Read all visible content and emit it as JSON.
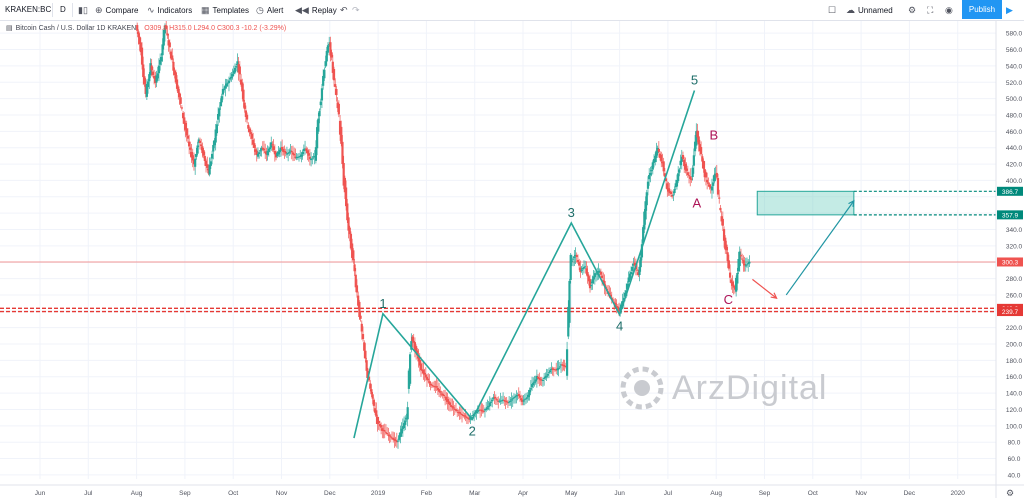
{
  "toolbar": {
    "symbol": "KRAKEN:BCI",
    "interval": "D",
    "compare": "Compare",
    "indicators": "Indicators",
    "templates": "Templates",
    "alert": "Alert",
    "replay": "Replay",
    "layout_name": "Unnamed",
    "publish": "Publish",
    "icons": [
      "candles-icon",
      "plus-circle-icon",
      "indicators-icon",
      "templates-icon",
      "alert-clock-icon",
      "replay-icon",
      "undo-icon",
      "redo-icon",
      "checkbox-icon",
      "cloud-icon",
      "gear-icon",
      "fullscreen-icon",
      "camera-icon",
      "play-icon"
    ]
  },
  "legend": {
    "title": "Bitcoin Cash / U.S. Dollar  1D  KRAKEN",
    "ohlc": "O309.8  H315.0  L294.0  C300.3  -10.2 (-3.29%)"
  },
  "watermark": "ArzDigital",
  "colors": {
    "up": "#26a69a",
    "down": "#ef5350",
    "accent": "#2196f3",
    "wave": "#26a69a",
    "current_price": "#ef5350",
    "support": "#e53935",
    "target_box": "#7dd3c6",
    "wave_label": "#1e6e69",
    "abc_label": "#ad1457"
  },
  "chart_data": {
    "type": "candlestick",
    "symbol": "BCH/USD",
    "timeframe": "1D",
    "y_axis": {
      "range": [
        40,
        600
      ],
      "ticks": [
        580,
        560,
        540,
        520,
        500,
        480,
        460,
        440,
        420,
        400,
        380,
        360,
        340,
        320,
        300,
        280,
        260,
        240,
        220,
        200,
        180,
        160,
        140,
        120,
        100,
        80,
        60,
        40
      ]
    },
    "x_axis": {
      "labels": [
        "Jun",
        "Jul",
        "Aug",
        "Sep",
        "Oct",
        "Nov",
        "Dec",
        "2019",
        "Feb",
        "Mar",
        "Apr",
        "May",
        "Jun",
        "Jul",
        "Aug",
        "Sep",
        "Oct",
        "Nov",
        "Dec",
        "2020"
      ]
    },
    "price_markers": [
      {
        "label": "386.7",
        "value": 386.7,
        "kind": "target"
      },
      {
        "label": "357.9",
        "value": 357.9,
        "kind": "target"
      },
      {
        "label": "300.3",
        "value": 300.3,
        "kind": "current"
      },
      {
        "label": "243.6",
        "value": 243.6,
        "kind": "support"
      },
      {
        "label": "239.7",
        "value": 239.7,
        "kind": "support"
      }
    ],
    "target_zone": {
      "low": 357.9,
      "high": 386.7
    },
    "support_zone": {
      "low": 239.7,
      "high": 243.6
    },
    "elliott_wave": [
      {
        "label": "",
        "x": 6.5,
        "y": 85
      },
      {
        "label": "1",
        "x": 7.1,
        "y": 237
      },
      {
        "label": "2",
        "x": 8.95,
        "y": 108
      },
      {
        "label": "3",
        "x": 11.0,
        "y": 348
      },
      {
        "label": "4",
        "x": 12.0,
        "y": 236
      },
      {
        "label": "5",
        "x": 13.55,
        "y": 510
      }
    ],
    "corrective_labels": [
      {
        "label": "A",
        "x": 13.6,
        "y": 367
      },
      {
        "label": "B",
        "x": 13.95,
        "y": 450
      },
      {
        "label": "C",
        "x": 14.25,
        "y": 249
      }
    ],
    "projection_down": {
      "from": [
        14.75,
        279
      ],
      "to": [
        15.25,
        256
      ]
    },
    "projection_up": {
      "from": [
        15.45,
        260
      ],
      "to": [
        16.85,
        375
      ]
    },
    "price_path": [
      [
        2.0,
        590
      ],
      [
        2.1,
        560
      ],
      [
        2.2,
        505
      ],
      [
        2.3,
        540
      ],
      [
        2.4,
        520
      ],
      [
        2.5,
        545
      ],
      [
        2.6,
        590
      ],
      [
        2.7,
        560
      ],
      [
        2.8,
        530
      ],
      [
        2.9,
        500
      ],
      [
        3.0,
        470
      ],
      [
        3.1,
        440
      ],
      [
        3.2,
        420
      ],
      [
        3.3,
        450
      ],
      [
        3.4,
        430
      ],
      [
        3.5,
        410
      ],
      [
        3.6,
        440
      ],
      [
        3.7,
        480
      ],
      [
        3.8,
        510
      ],
      [
        3.9,
        520
      ],
      [
        4.0,
        530
      ],
      [
        4.1,
        545
      ],
      [
        4.2,
        510
      ],
      [
        4.3,
        470
      ],
      [
        4.4,
        450
      ],
      [
        4.5,
        430
      ],
      [
        4.6,
        440
      ],
      [
        4.7,
        432
      ],
      [
        4.8,
        445
      ],
      [
        4.9,
        430
      ],
      [
        5.0,
        440
      ],
      [
        5.1,
        432
      ],
      [
        5.2,
        436
      ],
      [
        5.3,
        428
      ],
      [
        5.4,
        430
      ],
      [
        5.5,
        440
      ],
      [
        5.6,
        425
      ],
      [
        5.7,
        430
      ],
      [
        5.8,
        490
      ],
      [
        5.9,
        540
      ],
      [
        6.0,
        570
      ],
      [
        6.1,
        520
      ],
      [
        6.2,
        480
      ],
      [
        6.3,
        400
      ],
      [
        6.4,
        340
      ],
      [
        6.5,
        300
      ],
      [
        6.6,
        250
      ],
      [
        6.7,
        200
      ],
      [
        6.8,
        160
      ],
      [
        6.9,
        130
      ],
      [
        7.0,
        105
      ],
      [
        7.1,
        95
      ],
      [
        7.2,
        90
      ],
      [
        7.3,
        85
      ],
      [
        7.4,
        80
      ],
      [
        7.5,
        95
      ],
      [
        7.6,
        110
      ],
      [
        7.7,
        210
      ],
      [
        7.8,
        190
      ],
      [
        7.9,
        170
      ],
      [
        8.0,
        160
      ],
      [
        8.1,
        150
      ],
      [
        8.2,
        148
      ],
      [
        8.3,
        140
      ],
      [
        8.4,
        135
      ],
      [
        8.5,
        125
      ],
      [
        8.6,
        120
      ],
      [
        8.7,
        115
      ],
      [
        8.8,
        112
      ],
      [
        8.9,
        108
      ],
      [
        9.0,
        115
      ],
      [
        9.1,
        120
      ],
      [
        9.2,
        118
      ],
      [
        9.3,
        125
      ],
      [
        9.4,
        135
      ],
      [
        9.5,
        130
      ],
      [
        9.6,
        132
      ],
      [
        9.7,
        128
      ],
      [
        9.8,
        134
      ],
      [
        9.9,
        138
      ],
      [
        10.0,
        130
      ],
      [
        10.1,
        135
      ],
      [
        10.2,
        150
      ],
      [
        10.3,
        160
      ],
      [
        10.4,
        155
      ],
      [
        10.5,
        162
      ],
      [
        10.6,
        170
      ],
      [
        10.7,
        168
      ],
      [
        10.8,
        175
      ],
      [
        10.9,
        172
      ],
      [
        11.0,
        300
      ],
      [
        11.1,
        310
      ],
      [
        11.2,
        290
      ],
      [
        11.3,
        295
      ],
      [
        11.4,
        270
      ],
      [
        11.5,
        285
      ],
      [
        11.6,
        290
      ],
      [
        11.7,
        270
      ],
      [
        11.8,
        260
      ],
      [
        11.9,
        250
      ],
      [
        12.0,
        240
      ],
      [
        12.1,
        255
      ],
      [
        12.2,
        280
      ],
      [
        12.3,
        300
      ],
      [
        12.4,
        285
      ],
      [
        12.5,
        340
      ],
      [
        12.6,
        400
      ],
      [
        12.7,
        420
      ],
      [
        12.8,
        440
      ],
      [
        12.9,
        420
      ],
      [
        13.0,
        390
      ],
      [
        13.1,
        380
      ],
      [
        13.2,
        400
      ],
      [
        13.3,
        430
      ],
      [
        13.4,
        410
      ],
      [
        13.5,
        400
      ],
      [
        13.6,
        460
      ],
      [
        13.7,
        430
      ],
      [
        13.8,
        400
      ],
      [
        13.9,
        390
      ],
      [
        14.0,
        410
      ],
      [
        14.1,
        360
      ],
      [
        14.2,
        320
      ],
      [
        14.3,
        280
      ],
      [
        14.4,
        265
      ],
      [
        14.5,
        310
      ],
      [
        14.6,
        295
      ],
      [
        14.7,
        300
      ]
    ]
  }
}
